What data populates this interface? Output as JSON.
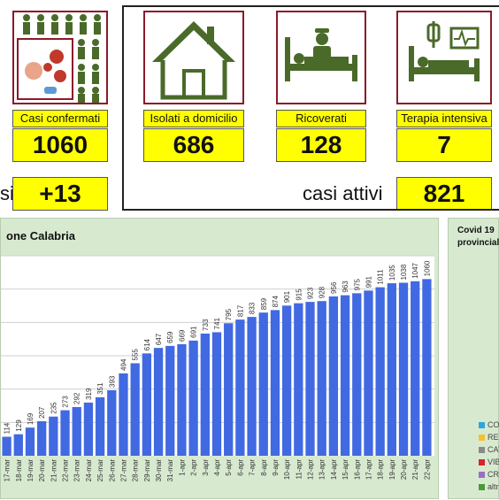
{
  "stats": {
    "confermati": {
      "label": "Casi confermati",
      "value": "1060"
    },
    "domicilio": {
      "label": "Isolati a domicilio",
      "value": "686"
    },
    "ricoverati": {
      "label": "Ricoverati",
      "value": "128"
    },
    "terapia": {
      "label": "Terapia intensiva",
      "value": "7"
    },
    "nuovi": {
      "label_fragment": "si",
      "value": "+13"
    },
    "attivi": {
      "label": "casi attivi",
      "value": "821"
    }
  },
  "side_panel": {
    "title_line1": "Covid 19",
    "title_line2": "provincial",
    "legend": [
      {
        "text": "CO",
        "color": "#29a8e0"
      },
      {
        "text": "REG",
        "color": "#f2c12e"
      },
      {
        "text": "CAT",
        "color": "#8a8a8a"
      },
      {
        "text": "VIB",
        "color": "#d9232d"
      },
      {
        "text": "CRO",
        "color": "#9b6fc0"
      },
      {
        "text": "altr",
        "color": "#4a9a3a"
      }
    ]
  },
  "colors": {
    "bar": "#4169e1",
    "panel": "#d7ead0",
    "yellow": "#ffff00",
    "frame": "#8b1a2a",
    "icon": "#4a6a2a"
  },
  "icons": [
    "crowd-virus-icon",
    "house-icon",
    "hospital-bed-icon",
    "intensive-care-icon"
  ],
  "chart_data": {
    "type": "bar",
    "title": "one Calabria",
    "categories": [
      "17-mar",
      "18-mar",
      "19-mar",
      "20-mar",
      "21-mar",
      "22-mar",
      "23-mar",
      "24-mar",
      "25-mar",
      "26-mar",
      "27-mar",
      "28-mar",
      "29-mar",
      "30-mar",
      "31-mar",
      "1-apr",
      "2-apr",
      "3-apr",
      "4-apr",
      "5-apr",
      "6-apr",
      "7-apr",
      "8-apr",
      "9-apr",
      "10-apr",
      "11-apr",
      "12-apr",
      "13-apr",
      "14-apr",
      "15-apr",
      "16-apr",
      "17-apr",
      "18-apr",
      "19-apr",
      "20-apr",
      "21-apr",
      "22-apr"
    ],
    "values": [
      114,
      129,
      169,
      207,
      235,
      273,
      292,
      319,
      351,
      393,
      494,
      555,
      614,
      647,
      659,
      669,
      691,
      733,
      741,
      795,
      817,
      833,
      859,
      874,
      901,
      915,
      923,
      928,
      956,
      963,
      975,
      991,
      1011,
      1035,
      1038,
      1047,
      1060
    ],
    "ylim": [
      0,
      1200
    ],
    "grid": true
  }
}
